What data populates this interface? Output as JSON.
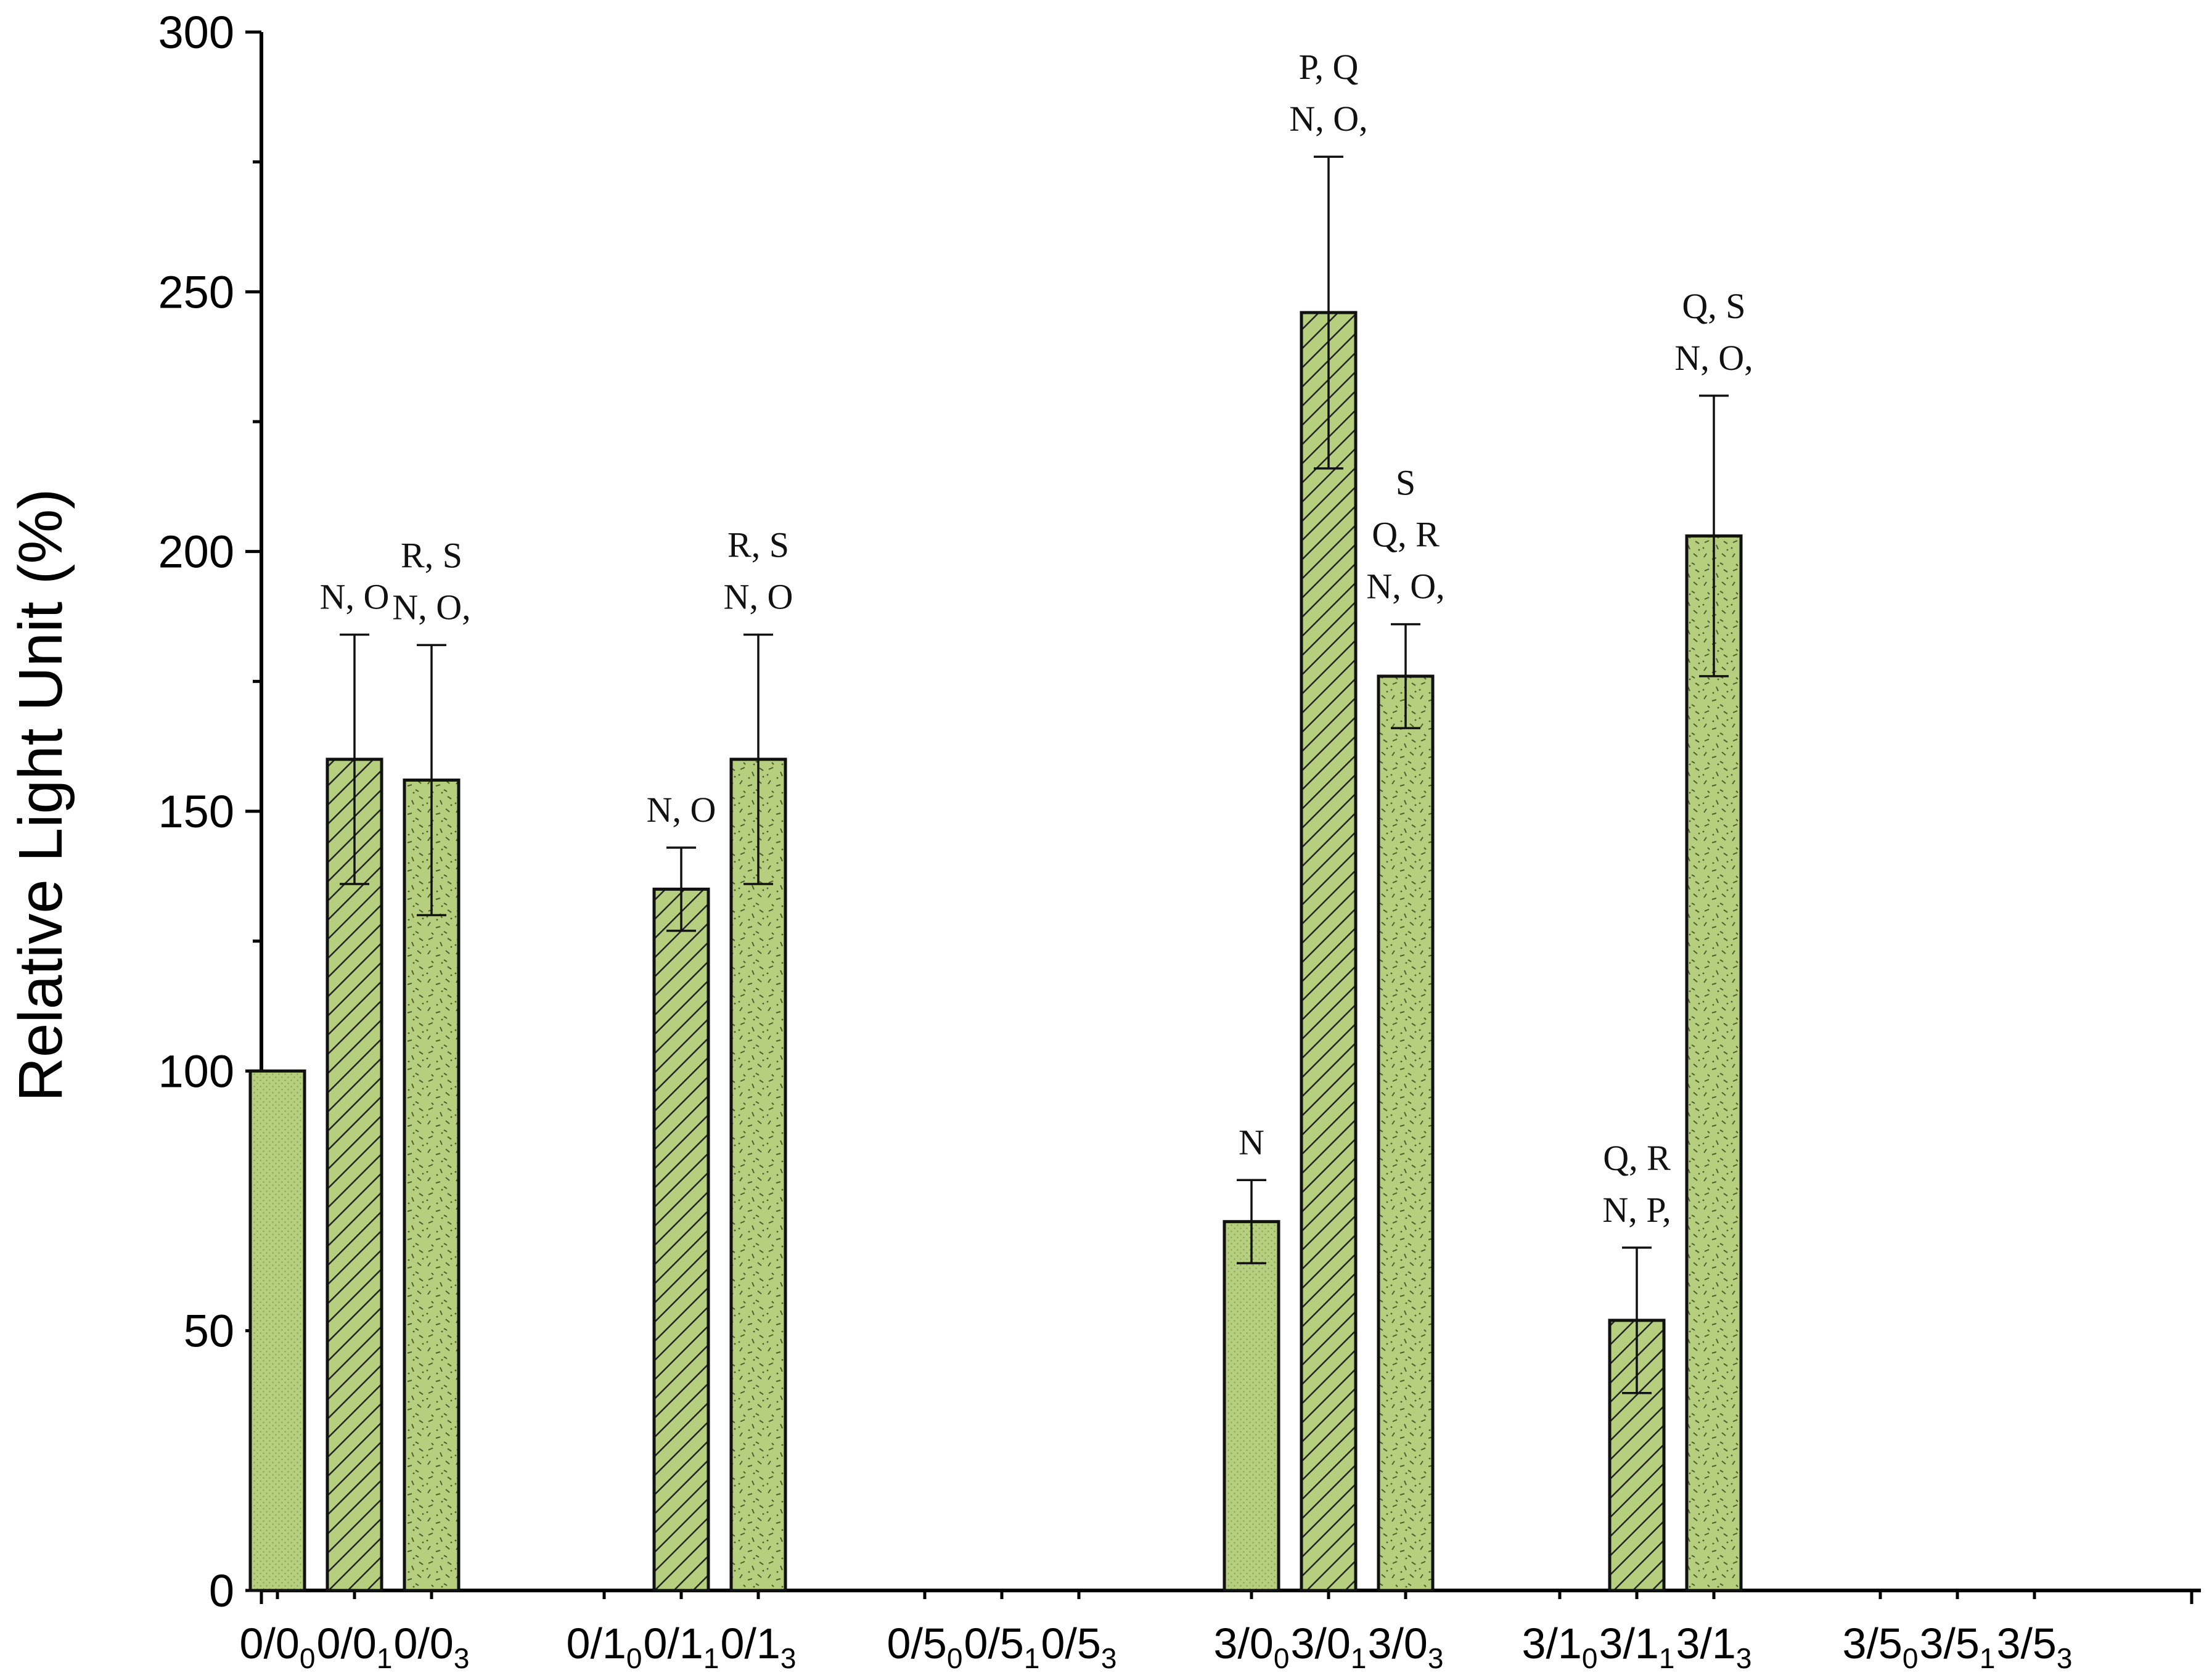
{
  "chart_data": {
    "type": "bar",
    "title": "",
    "xlabel": "",
    "ylabel": "Relative Light Unit (%)",
    "ylim": [
      0,
      300
    ],
    "yticks": [
      0,
      50,
      100,
      150,
      200,
      250,
      300
    ],
    "grid": false,
    "legend": "none",
    "colors": {
      "bar_fill": "#b5cf7f",
      "stroke": "#111111"
    },
    "categories": [
      {
        "main": "0/0",
        "sub": "0"
      },
      {
        "main": "0/0",
        "sub": "1"
      },
      {
        "main": "0/0",
        "sub": "3"
      },
      {
        "main": "0/1",
        "sub": "0"
      },
      {
        "main": "0/1",
        "sub": "1"
      },
      {
        "main": "0/1",
        "sub": "3"
      },
      {
        "main": "0/5",
        "sub": "0"
      },
      {
        "main": "0/5",
        "sub": "1"
      },
      {
        "main": "0/5",
        "sub": "3"
      },
      {
        "main": "3/0",
        "sub": "0"
      },
      {
        "main": "3/0",
        "sub": "1"
      },
      {
        "main": "3/0",
        "sub": "3"
      },
      {
        "main": "3/1",
        "sub": "0"
      },
      {
        "main": "3/1",
        "sub": "1"
      },
      {
        "main": "3/1",
        "sub": "3"
      },
      {
        "main": "3/5",
        "sub": "0"
      },
      {
        "main": "3/5",
        "sub": "1"
      },
      {
        "main": "3/5",
        "sub": "3"
      }
    ],
    "bars": [
      {
        "category": 0,
        "value": 100,
        "error": null,
        "pattern": "fine-dots",
        "annotation": []
      },
      {
        "category": 1,
        "value": 160,
        "error": 24,
        "pattern": "hatch",
        "annotation": [
          "N, O"
        ]
      },
      {
        "category": 2,
        "value": 156,
        "error": 26,
        "pattern": "speckle",
        "annotation": [
          "R, S",
          "N, O,"
        ]
      },
      {
        "category": 4,
        "value": 135,
        "error": 8,
        "pattern": "hatch",
        "annotation": [
          "N, O"
        ]
      },
      {
        "category": 5,
        "value": 160,
        "error": 24,
        "pattern": "speckle",
        "annotation": [
          "R, S",
          "N, O"
        ]
      },
      {
        "category": 9,
        "value": 71,
        "error": 8,
        "pattern": "fine-dots",
        "annotation": [
          "N"
        ]
      },
      {
        "category": 10,
        "value": 246,
        "error": 30,
        "pattern": "hatch",
        "annotation": [
          "P, Q",
          "N, O,"
        ]
      },
      {
        "category": 11,
        "value": 176,
        "error": 10,
        "pattern": "speckle",
        "annotation": [
          "S",
          "Q, R",
          "N, O,"
        ]
      },
      {
        "category": 13,
        "value": 52,
        "error": 14,
        "pattern": "hatch",
        "annotation": [
          "Q, R",
          "N, P,"
        ]
      },
      {
        "category": 14,
        "value": 203,
        "error": 27,
        "pattern": "speckle",
        "annotation": [
          "Q, S",
          "N, O,"
        ]
      }
    ]
  }
}
